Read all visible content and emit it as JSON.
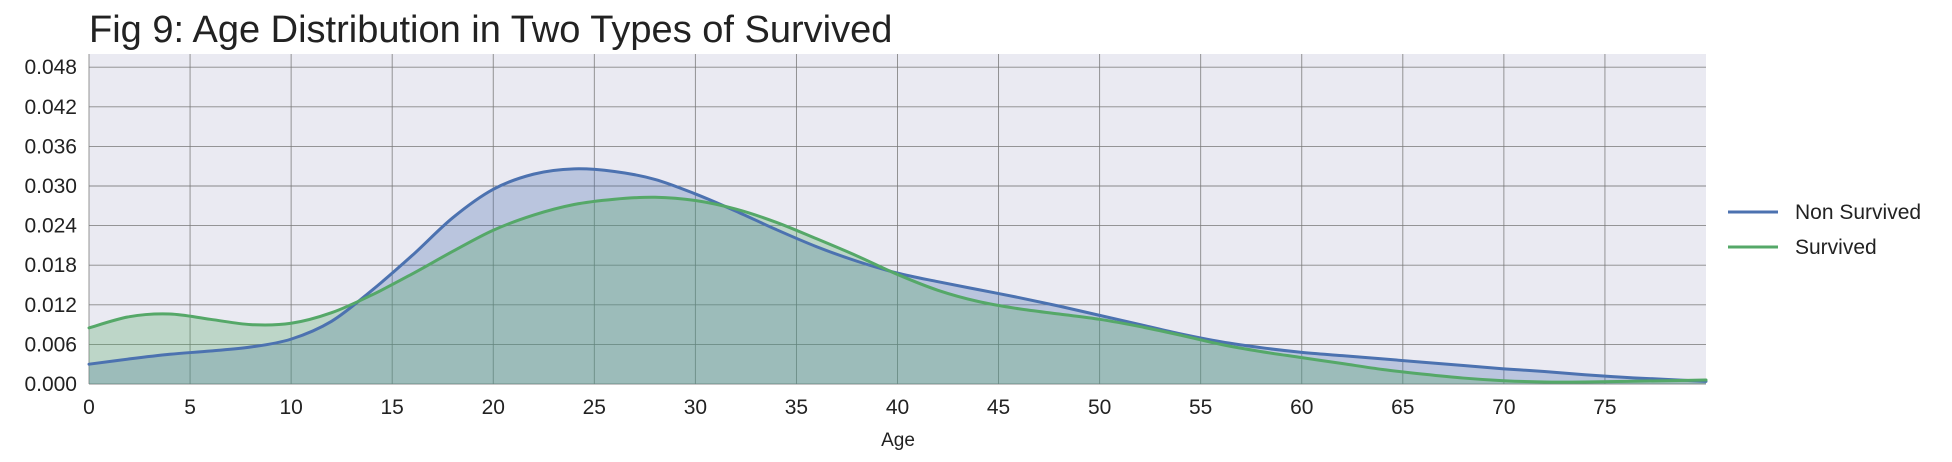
{
  "chart_data": {
    "type": "area",
    "title": "Fig 9: Age Distribution in Two Types of Survived",
    "xlabel": "Age",
    "ylabel": "",
    "xlim": [
      0,
      80
    ],
    "ylim": [
      0,
      0.05
    ],
    "xticks": [
      0,
      5,
      10,
      15,
      20,
      25,
      30,
      35,
      40,
      45,
      50,
      55,
      60,
      65,
      70,
      75
    ],
    "xtick_labels": [
      "0",
      "5",
      "10",
      "15",
      "20",
      "25",
      "30",
      "35",
      "40",
      "45",
      "50",
      "55",
      "60",
      "65",
      "70",
      "75"
    ],
    "yticks": [
      0,
      0.006,
      0.012,
      0.018,
      0.024,
      0.03,
      0.036,
      0.042,
      0.048
    ],
    "ytick_labels": [
      "0.000",
      "0.006",
      "0.012",
      "0.018",
      "0.024",
      "0.030",
      "0.036",
      "0.042",
      "0.048"
    ],
    "grid": true,
    "legend_position": "right",
    "background": "#eaeaf2",
    "series": [
      {
        "name": "Non Survived",
        "color": "#4c72b0",
        "x": [
          0,
          2,
          4,
          6,
          8,
          10,
          12,
          14,
          16,
          18,
          20,
          22,
          24,
          26,
          28,
          30,
          32,
          34,
          36,
          38,
          40,
          42,
          44,
          46,
          48,
          50,
          52,
          54,
          56,
          58,
          60,
          62,
          64,
          66,
          68,
          70,
          72,
          74,
          76,
          78,
          80
        ],
        "y": [
          0.003,
          0.0038,
          0.0045,
          0.005,
          0.0056,
          0.0068,
          0.0095,
          0.0142,
          0.0195,
          0.0252,
          0.0295,
          0.0318,
          0.0326,
          0.0322,
          0.031,
          0.0288,
          0.0262,
          0.0234,
          0.0208,
          0.0186,
          0.0168,
          0.0155,
          0.0143,
          0.0131,
          0.0118,
          0.0104,
          0.009,
          0.0076,
          0.0064,
          0.0055,
          0.0048,
          0.0043,
          0.0038,
          0.0033,
          0.0028,
          0.0023,
          0.0019,
          0.0014,
          0.001,
          0.0007,
          0.0004
        ]
      },
      {
        "name": "Survived",
        "color": "#55a868",
        "x": [
          0,
          2,
          4,
          6,
          8,
          10,
          12,
          14,
          16,
          18,
          20,
          22,
          24,
          26,
          28,
          30,
          32,
          34,
          36,
          38,
          40,
          42,
          44,
          46,
          48,
          50,
          52,
          54,
          56,
          58,
          60,
          62,
          64,
          66,
          68,
          70,
          72,
          74,
          76,
          78,
          80
        ],
        "y": [
          0.0085,
          0.0102,
          0.0106,
          0.0098,
          0.009,
          0.0092,
          0.0108,
          0.0135,
          0.0167,
          0.0201,
          0.0233,
          0.0256,
          0.0272,
          0.028,
          0.0283,
          0.0278,
          0.0265,
          0.0245,
          0.022,
          0.0194,
          0.0166,
          0.0142,
          0.0125,
          0.0114,
          0.0106,
          0.0098,
          0.0087,
          0.0074,
          0.006,
          0.0049,
          0.004,
          0.0031,
          0.0022,
          0.0015,
          0.0009,
          0.0005,
          0.0003,
          0.0003,
          0.0004,
          0.0005,
          0.0006
        ]
      }
    ]
  }
}
